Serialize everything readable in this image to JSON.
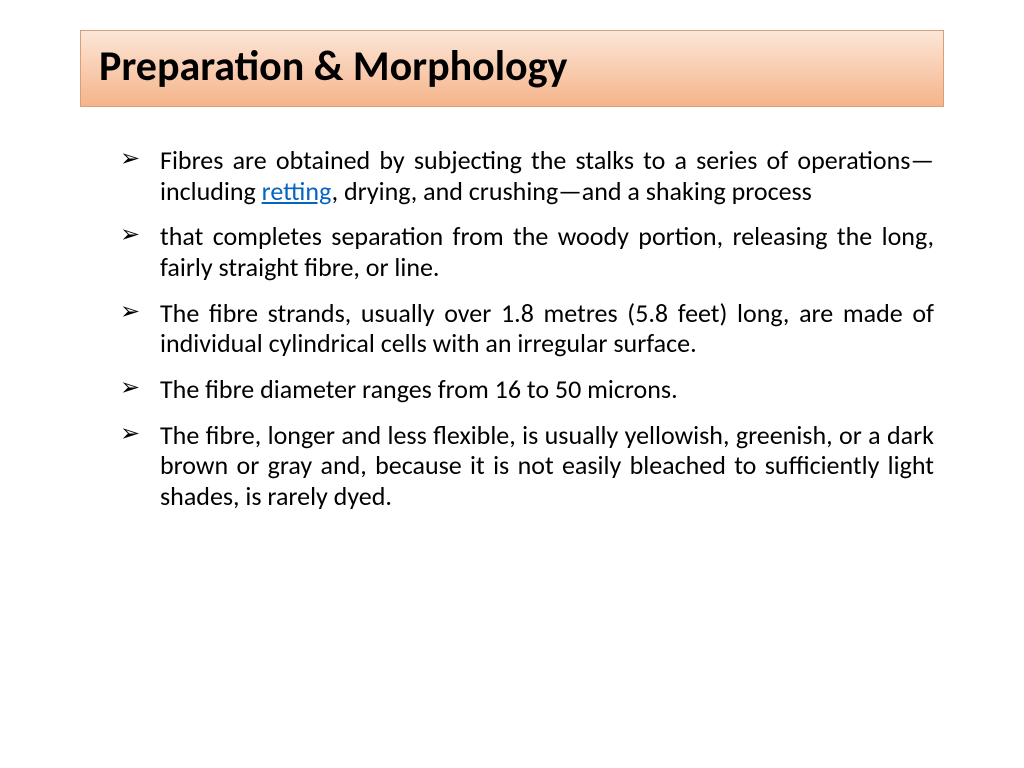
{
  "slide": {
    "title": "Preparation & Morphology",
    "title_bg_gradient_top": "#fce6d8",
    "title_bg_gradient_bottom": "#f5b48a",
    "title_border_color": "#d9a078",
    "title_fontsize": 42,
    "title_color": "#000000",
    "body_fontsize": 26,
    "body_color": "#000000",
    "link_color": "#0563c1",
    "background_color": "#ffffff",
    "bullets": [
      {
        "pre": "Fibres are obtained by subjecting the stalks to a series of operations—including ",
        "link": "retting",
        "post": ", drying, and crushing—and a shaking process"
      },
      {
        "text": "that completes separation from the woody portion, releasing the long, fairly straight fibre, or line."
      },
      {
        "text": "The fibre strands, usually over 1.8 metres (5.8 feet) long, are made of individual cylindrical cells with an irregular surface."
      },
      {
        "text": "The fibre diameter ranges from 16 to 50 microns."
      },
      {
        "text": "The fibre, longer and less flexible, is usually yellowish, greenish, or a dark brown or gray and, because it is  not easily bleached to sufficiently light shades, is rarely dyed."
      }
    ]
  }
}
